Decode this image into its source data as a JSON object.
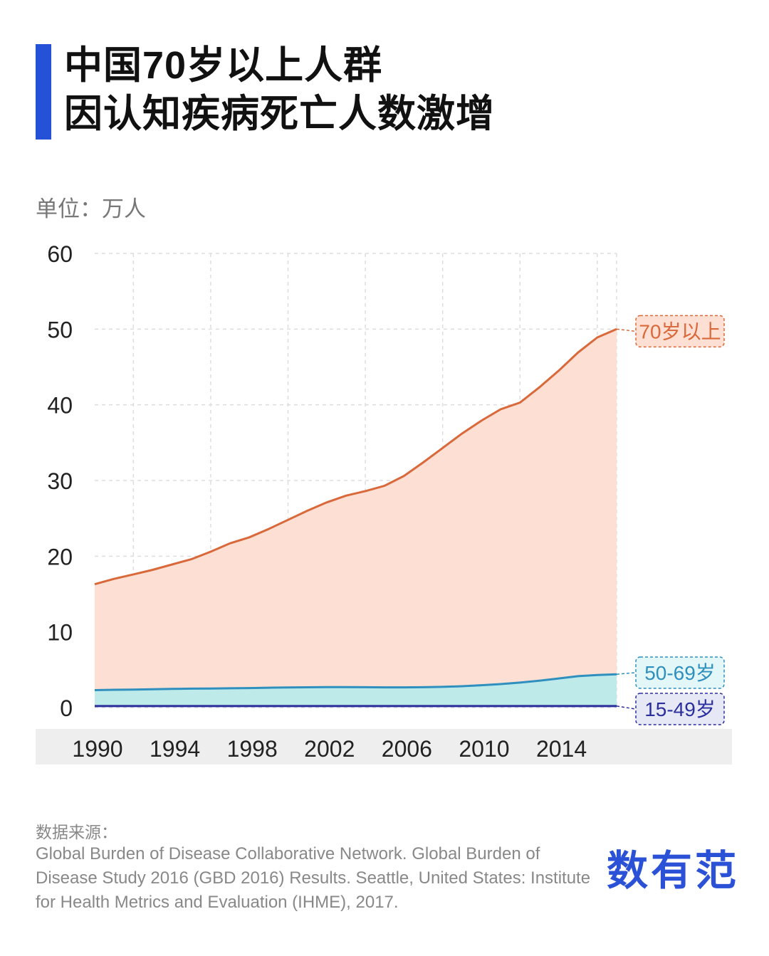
{
  "title": {
    "line1": "中国70岁以上人群",
    "line2": "因认知疾病死亡人数激增"
  },
  "unit_label": "单位：万人",
  "source": {
    "heading": "数据来源：",
    "text": "Global Burden of Disease Collaborative Network. Global Burden of Disease Study 2016 (GBD 2016) Results. Seattle, United States: Institute for Health Metrics and Evaluation (IHME), 2017."
  },
  "logo_text": "数有范",
  "colors": {
    "accent": "#2451d6",
    "s70": "#d9683a",
    "s70_fill": "#fde0d3",
    "s50": "#2f8fbf",
    "s50_fill": "#bfeaea",
    "s15": "#2b2f9e",
    "grid": "#dddddd",
    "xband": "#eeeeee"
  },
  "chart_data": {
    "type": "area",
    "x": [
      1990,
      1991,
      1992,
      1993,
      1994,
      1995,
      1996,
      1997,
      1998,
      1999,
      2000,
      2001,
      2002,
      2003,
      2004,
      2005,
      2006,
      2007,
      2008,
      2009,
      2010,
      2011,
      2012,
      2013,
      2014,
      2015,
      2016,
      2017
    ],
    "x_ticks": [
      "1990",
      "1994",
      "1998",
      "2002",
      "2006",
      "2010",
      "2014"
    ],
    "y_ticks": [
      "0",
      "10",
      "20",
      "30",
      "40",
      "50",
      "60"
    ],
    "ylim": [
      0,
      60
    ],
    "grid": true,
    "series": [
      {
        "name": "70岁以上",
        "color": "#d9683a",
        "fill": "#fde0d3",
        "values": [
          16.3,
          17.0,
          17.6,
          18.2,
          18.9,
          19.6,
          20.6,
          21.7,
          22.5,
          23.6,
          24.8,
          26.0,
          27.1,
          28.0,
          28.6,
          29.3,
          30.6,
          32.4,
          34.3,
          36.2,
          37.9,
          39.4,
          40.3,
          42.3,
          44.5,
          46.9,
          48.9,
          50.0
        ]
      },
      {
        "name": "50-69岁",
        "color": "#2f8fbf",
        "fill": "#bfeaea",
        "values": [
          2.3,
          2.35,
          2.38,
          2.42,
          2.46,
          2.5,
          2.52,
          2.55,
          2.58,
          2.62,
          2.66,
          2.68,
          2.7,
          2.7,
          2.69,
          2.67,
          2.67,
          2.69,
          2.74,
          2.82,
          2.95,
          3.1,
          3.3,
          3.55,
          3.85,
          4.15,
          4.3,
          4.4
        ]
      },
      {
        "name": "15-49岁",
        "color": "#2b2f9e",
        "fill": "none",
        "values": [
          0.2,
          0.2,
          0.2,
          0.2,
          0.2,
          0.2,
          0.2,
          0.2,
          0.2,
          0.2,
          0.2,
          0.2,
          0.2,
          0.2,
          0.2,
          0.2,
          0.2,
          0.2,
          0.2,
          0.2,
          0.2,
          0.2,
          0.2,
          0.2,
          0.2,
          0.2,
          0.2,
          0.2
        ]
      }
    ]
  }
}
